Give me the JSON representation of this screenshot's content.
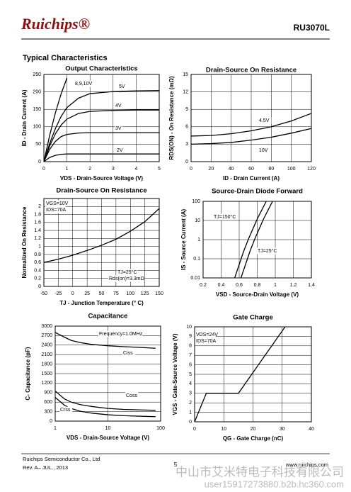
{
  "header": {
    "logo": "Ruichips®",
    "part": "RU3070L",
    "section": "Typical Characteristics"
  },
  "chart_data": [
    {
      "type": "line",
      "title": "Output Characteristics",
      "x_label": "VDS - Drain-Source Voltage (V)",
      "y_label": "ID - Drain Current (A)",
      "x": [
        0,
        0.25,
        0.5,
        0.75,
        1,
        1.5,
        2,
        3,
        4,
        5
      ],
      "xlim": [
        0,
        5
      ],
      "xticks": [
        0,
        1,
        2,
        3,
        4,
        5
      ],
      "ylim": [
        0,
        250
      ],
      "yticks": [
        0,
        50,
        100,
        150,
        200,
        250
      ],
      "grid": true,
      "series": [
        {
          "name": "2V",
          "color": "#000000",
          "values": [
            0,
            12,
            18,
            21,
            22,
            22,
            22,
            22,
            22,
            22
          ]
        },
        {
          "name": "3V",
          "color": "#000000",
          "values": [
            0,
            35,
            58,
            72,
            78,
            82,
            83,
            83,
            83,
            83
          ]
        },
        {
          "name": "4V",
          "color": "#000000",
          "values": [
            0,
            45,
            80,
            105,
            122,
            138,
            144,
            147,
            148,
            148
          ]
        },
        {
          "name": "5V",
          "color": "#000000",
          "values": [
            0,
            52,
            95,
            130,
            155,
            182,
            195,
            201,
            203,
            204
          ]
        },
        {
          "name": "8,9,10V",
          "color": "#000000",
          "values": [
            0,
            75,
            140,
            195,
            240,
            null,
            null,
            null,
            null,
            null
          ]
        }
      ]
    },
    {
      "type": "line",
      "title": "Drain-Source On Resistance",
      "x_label": "ID - Drain Current (A)",
      "y_label": "RDS(ON) - On Resistance (mΩ)",
      "x": [
        0,
        20,
        40,
        60,
        80,
        100,
        120
      ],
      "xlim": [
        0,
        120
      ],
      "xticks": [
        0,
        20,
        40,
        60,
        80,
        100,
        120
      ],
      "ylim": [
        0,
        15
      ],
      "yticks": [
        0,
        3,
        6,
        9,
        12,
        15
      ],
      "grid": true,
      "series": [
        {
          "name": "4.5V",
          "color": "#000000",
          "values": [
            4.4,
            4.5,
            4.8,
            5.3,
            6.0,
            7.0,
            8.3
          ]
        },
        {
          "name": "10V",
          "color": "#000000",
          "values": [
            3.0,
            3.1,
            3.3,
            3.7,
            4.2,
            4.9,
            5.7
          ]
        }
      ]
    },
    {
      "type": "line",
      "title": "Drain-Source On Resistance",
      "x_label": "TJ - Junction Temperature (° C)",
      "y_label": "Normalized On Resistance",
      "x": [
        -50,
        -25,
        0,
        25,
        50,
        75,
        100,
        125,
        150
      ],
      "xlim": [
        -50,
        150
      ],
      "xticks": [
        -50,
        -25,
        0,
        25,
        50,
        75,
        100,
        125,
        150
      ],
      "ylim": [
        0,
        2.2
      ],
      "yticks": [
        0,
        0.2,
        0.4,
        0.6,
        0.8,
        1,
        1.2,
        1.4,
        1.6,
        1.8,
        2
      ],
      "grid": true,
      "annotations": [
        "VGS=10V",
        "IDS=70A",
        "TJ=25°C",
        "Rds(on)=3.3mΩ"
      ],
      "series": [
        {
          "color": "#000000",
          "values": [
            0.6,
            0.68,
            0.78,
            0.9,
            1.03,
            1.18,
            1.38,
            1.62,
            1.95
          ]
        }
      ]
    },
    {
      "type": "line",
      "title": "Source-Drain Diode Forward",
      "x_label": "VSD - Source-Drain Voltage (V)",
      "y_label": "IS - Source Current (A)",
      "xlim": [
        0.2,
        1.4
      ],
      "xticks": [
        0.2,
        0.4,
        0.6,
        0.8,
        1,
        1.2,
        1.4
      ],
      "ylim": [
        0.01,
        100
      ],
      "yticks": [
        0.01,
        0.1,
        1,
        10,
        100
      ],
      "ylog": true,
      "grid": true,
      "series": [
        {
          "name": "TJ=150°C",
          "color": "#000000",
          "x": [
            0.55,
            0.6,
            0.65,
            0.7,
            0.75,
            0.8,
            0.85,
            0.9
          ],
          "values": [
            0.01,
            0.05,
            0.25,
            1,
            3.5,
            12,
            35,
            100
          ]
        },
        {
          "name": "TJ=25°C",
          "color": "#000000",
          "x": [
            0.62,
            0.67,
            0.72,
            0.77,
            0.82,
            0.87,
            0.92,
            0.97
          ],
          "values": [
            0.01,
            0.05,
            0.25,
            1,
            3.5,
            12,
            35,
            100
          ]
        }
      ]
    },
    {
      "type": "line",
      "title": "Capacitance",
      "x_label": "VDS - Drain-Source Voltage (V)",
      "y_label": "C- Capacitance (pF)",
      "x": [
        1,
        1.5,
        2,
        3,
        5,
        10,
        20,
        50,
        80
      ],
      "xlim": [
        1,
        100
      ],
      "xticks": [
        1,
        10,
        100
      ],
      "xlog": true,
      "ylim": [
        0,
        3000
      ],
      "yticks": [
        0,
        300,
        600,
        900,
        1200,
        1500,
        1800,
        2100,
        2400,
        2700,
        3000
      ],
      "grid": true,
      "annotations": [
        "Frequency=1.0MHz"
      ],
      "series": [
        {
          "name": "Ciss",
          "color": "#000000",
          "values": [
            2800,
            2650,
            2550,
            2480,
            2420,
            2380,
            2350,
            2320,
            2300
          ]
        },
        {
          "name": "Coss",
          "color": "#000000",
          "values": [
            950,
            700,
            600,
            520,
            460,
            400,
            370,
            350,
            340
          ]
        },
        {
          "name": "Crss",
          "color": "#000000",
          "values": [
            750,
            500,
            400,
            310,
            250,
            200,
            170,
            150,
            140
          ]
        }
      ]
    },
    {
      "type": "line",
      "title": "Gate Charge",
      "x_label": "QG - Gate Charge (nC)",
      "y_label": "VGS - Gate-Source Voltage (V)",
      "x": [
        0,
        4,
        15,
        31
      ],
      "xlim": [
        0,
        40
      ],
      "xticks": [
        0,
        10,
        20,
        30,
        40
      ],
      "ylim": [
        0,
        10
      ],
      "yticks": [
        0,
        1,
        2,
        3,
        4,
        5,
        6,
        7,
        8,
        9,
        10
      ],
      "grid": true,
      "annotations": [
        "VDS=24V",
        "IDS=70A"
      ],
      "series": [
        {
          "color": "#000000",
          "values": [
            0,
            3,
            3,
            10
          ]
        }
      ]
    }
  ],
  "footer": {
    "company": "Ruichips Semiconductor Co., Ltd",
    "revision": "Rev. A– JUL., 2013",
    "page": "5",
    "website": "www.ruichips.com"
  },
  "watermark": {
    "company": "中山市艾米特电子科技有限公司",
    "user": "user15917273880.b2b.hc360.com"
  }
}
